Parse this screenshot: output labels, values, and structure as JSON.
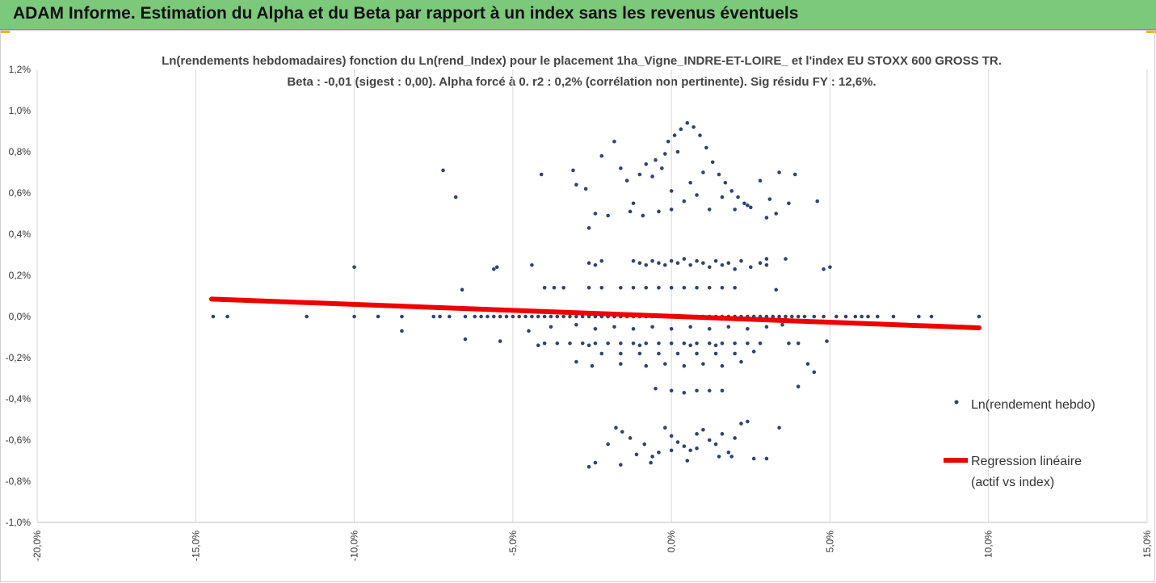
{
  "banner": {
    "title": "ADAM Informe. Estimation du Alpha et du Beta par rapport à un index sans les revenus éventuels",
    "color": "#7dc97c"
  },
  "chart_data": {
    "type": "scatter",
    "title": "Ln(rendements hebdomadaires) fonction du Ln(rend_Index) pour le placement 1ha_Vigne_INDRE-ET-LOIRE_ et l'index EU STOXX 600 GROSS TR.",
    "subtitle": "Beta : -0,01 (sigest : 0,00). Alpha forcé à 0. r2 : 0,2% (corrélation non pertinente). Sig résidu FY : 12,6%.",
    "xlabel": "",
    "ylabel": "",
    "xlim": [
      -0.2,
      0.15
    ],
    "ylim": [
      -0.01,
      0.012
    ],
    "x_ticks": [
      "-20,0%",
      "-15,0%",
      "-10,0%",
      "-5,0%",
      "0,0%",
      "5,0%",
      "10,0%",
      "15,0%"
    ],
    "y_ticks": [
      "1,2%",
      "1,0%",
      "0,8%",
      "0,6%",
      "0,4%",
      "0,2%",
      "0,0%",
      "-0,2%",
      "-0,4%",
      "-0,6%",
      "-0,8%",
      "-1,0%"
    ],
    "grid": "vertical",
    "legend_position": "right",
    "series": [
      {
        "name": "Ln(rendement hebdo)",
        "kind": "scatter",
        "color": "#2e4472",
        "points": [
          [
            -0.1445,
            0
          ],
          [
            -0.14,
            0
          ],
          [
            -0.115,
            0
          ],
          [
            -0.1,
            0
          ],
          [
            -0.0925,
            0
          ],
          [
            -0.085,
            0
          ],
          [
            -0.075,
            0
          ],
          [
            -0.073,
            0
          ],
          [
            -0.07,
            0
          ],
          [
            -0.065,
            0
          ],
          [
            -0.062,
            0
          ],
          [
            -0.06,
            0
          ],
          [
            -0.058,
            0
          ],
          [
            -0.056,
            0
          ],
          [
            -0.054,
            0
          ],
          [
            -0.052,
            0
          ],
          [
            -0.05,
            0
          ],
          [
            -0.048,
            0
          ],
          [
            -0.046,
            0
          ],
          [
            -0.044,
            0
          ],
          [
            -0.042,
            0
          ],
          [
            -0.04,
            0
          ],
          [
            -0.038,
            0
          ],
          [
            -0.036,
            0
          ],
          [
            -0.034,
            0
          ],
          [
            -0.032,
            0
          ],
          [
            -0.03,
            0
          ],
          [
            -0.028,
            0
          ],
          [
            -0.026,
            0
          ],
          [
            -0.024,
            0
          ],
          [
            -0.022,
            0
          ],
          [
            -0.02,
            0
          ],
          [
            -0.018,
            0
          ],
          [
            -0.016,
            0
          ],
          [
            -0.014,
            0
          ],
          [
            -0.012,
            0
          ],
          [
            -0.01,
            0
          ],
          [
            -0.008,
            0
          ],
          [
            -0.006,
            0
          ],
          [
            -0.004,
            0
          ],
          [
            -0.002,
            0
          ],
          [
            0,
            0
          ],
          [
            0.002,
            0
          ],
          [
            0.004,
            0
          ],
          [
            0.006,
            0
          ],
          [
            0.008,
            0
          ],
          [
            0.01,
            0
          ],
          [
            0.012,
            0
          ],
          [
            0.014,
            0
          ],
          [
            0.016,
            0
          ],
          [
            0.018,
            0
          ],
          [
            0.02,
            0
          ],
          [
            0.022,
            0
          ],
          [
            0.024,
            0
          ],
          [
            0.026,
            0
          ],
          [
            0.028,
            0
          ],
          [
            0.03,
            0
          ],
          [
            0.032,
            0
          ],
          [
            0.034,
            0
          ],
          [
            0.036,
            0
          ],
          [
            0.038,
            0
          ],
          [
            0.04,
            0
          ],
          [
            0.042,
            0
          ],
          [
            0.045,
            0
          ],
          [
            0.048,
            0
          ],
          [
            0.052,
            0
          ],
          [
            0.055,
            0
          ],
          [
            0.058,
            0
          ],
          [
            0.06,
            0
          ],
          [
            0.062,
            0
          ],
          [
            0.065,
            0
          ],
          [
            0.07,
            0
          ],
          [
            0.078,
            0
          ],
          [
            0.082,
            0
          ],
          [
            0.097,
            0
          ],
          [
            -0.1,
            0.0024
          ],
          [
            -0.055,
            0.0024
          ],
          [
            -0.056,
            0.0023
          ],
          [
            -0.044,
            0.0025
          ],
          [
            0.02,
            0.0023
          ],
          [
            0.03,
            0.0028
          ],
          [
            0.036,
            0.0028
          ],
          [
            0.048,
            0.0023
          ],
          [
            0.05,
            0.0024
          ],
          [
            -0.012,
            0.0027
          ],
          [
            -0.01,
            0.0026
          ],
          [
            -0.008,
            0.0025
          ],
          [
            -0.006,
            0.0027
          ],
          [
            -0.004,
            0.0026
          ],
          [
            -0.002,
            0.0025
          ],
          [
            0.0,
            0.0027
          ],
          [
            0.002,
            0.0026
          ],
          [
            0.004,
            0.0028
          ],
          [
            0.006,
            0.0025
          ],
          [
            0.008,
            0.0027
          ],
          [
            0.01,
            0.0026
          ],
          [
            0.012,
            0.0024
          ],
          [
            0.014,
            0.0027
          ],
          [
            0.016,
            0.0025
          ],
          [
            0.018,
            0.0026
          ],
          [
            -0.026,
            0.0026
          ],
          [
            -0.024,
            0.0025
          ],
          [
            -0.022,
            0.0027
          ],
          [
            0.022,
            0.0027
          ],
          [
            0.025,
            0.0024
          ],
          [
            0.028,
            0.0026
          ],
          [
            0.03,
            0.0025
          ],
          [
            -0.04,
            0.0014
          ],
          [
            -0.037,
            0.0014
          ],
          [
            -0.034,
            0.0014
          ],
          [
            -0.026,
            0.0014
          ],
          [
            -0.022,
            0.0014
          ],
          [
            -0.016,
            0.0014
          ],
          [
            -0.012,
            0.0014
          ],
          [
            -0.008,
            0.0014
          ],
          [
            -0.004,
            0.0014
          ],
          [
            0.0,
            0.0014
          ],
          [
            0.004,
            0.0014
          ],
          [
            0.008,
            0.0014
          ],
          [
            0.012,
            0.0014
          ],
          [
            0.016,
            0.0014
          ],
          [
            0.02,
            0.0014
          ],
          [
            0.033,
            0.0013
          ],
          [
            -0.066,
            0.0013
          ],
          [
            -0.038,
            -0.0005
          ],
          [
            -0.03,
            -0.0004
          ],
          [
            -0.024,
            -0.0006
          ],
          [
            -0.018,
            -0.0005
          ],
          [
            -0.012,
            -0.0006
          ],
          [
            -0.006,
            -0.0005
          ],
          [
            0.0,
            -0.0006
          ],
          [
            0.006,
            -0.0005
          ],
          [
            0.012,
            -0.0006
          ],
          [
            0.018,
            -0.0005
          ],
          [
            0.024,
            -0.0006
          ],
          [
            0.03,
            -0.0005
          ],
          [
            0.035,
            -0.0004
          ],
          [
            -0.045,
            -0.0007
          ],
          [
            -0.085,
            -0.0007
          ],
          [
            -0.04,
            -0.0013
          ],
          [
            -0.036,
            -0.0013
          ],
          [
            -0.032,
            -0.0013
          ],
          [
            -0.028,
            -0.0013
          ],
          [
            -0.024,
            -0.0013
          ],
          [
            -0.02,
            -0.0013
          ],
          [
            -0.016,
            -0.0013
          ],
          [
            -0.012,
            -0.0013
          ],
          [
            -0.008,
            -0.0013
          ],
          [
            -0.004,
            -0.0013
          ],
          [
            0.0,
            -0.0013
          ],
          [
            0.004,
            -0.0013
          ],
          [
            0.008,
            -0.0013
          ],
          [
            0.012,
            -0.0013
          ],
          [
            0.016,
            -0.0013
          ],
          [
            0.02,
            -0.0013
          ],
          [
            0.024,
            -0.0013
          ],
          [
            0.028,
            -0.0013
          ],
          [
            -0.065,
            -0.0011
          ],
          [
            -0.054,
            -0.0012
          ],
          [
            0.037,
            -0.0013
          ],
          [
            0.04,
            -0.0013
          ],
          [
            0.049,
            -0.0012
          ],
          [
            -0.042,
            -0.0014
          ],
          [
            -0.026,
            -0.0014
          ],
          [
            -0.01,
            -0.0014
          ],
          [
            0.006,
            -0.0014
          ],
          [
            0.014,
            -0.0014
          ],
          [
            -0.022,
            -0.0018
          ],
          [
            -0.016,
            -0.0018
          ],
          [
            -0.01,
            -0.0018
          ],
          [
            -0.004,
            -0.0018
          ],
          [
            0.002,
            -0.0018
          ],
          [
            0.008,
            -0.0018
          ],
          [
            0.014,
            -0.0018
          ],
          [
            0.02,
            -0.0018
          ],
          [
            0.026,
            -0.0017
          ],
          [
            -0.03,
            -0.0022
          ],
          [
            -0.025,
            -0.0024
          ],
          [
            -0.016,
            -0.0023
          ],
          [
            -0.008,
            -0.0024
          ],
          [
            -0.002,
            -0.0023
          ],
          [
            0.004,
            -0.0024
          ],
          [
            0.01,
            -0.0023
          ],
          [
            0.016,
            -0.0024
          ],
          [
            0.022,
            -0.0022
          ],
          [
            0.043,
            -0.0023
          ],
          [
            0.045,
            -0.0027
          ],
          [
            -0.005,
            -0.0035
          ],
          [
            0.0,
            -0.0036
          ],
          [
            0.004,
            -0.0037
          ],
          [
            0.008,
            -0.0036
          ],
          [
            0.012,
            -0.0036
          ],
          [
            0.016,
            -0.0036
          ],
          [
            0.04,
            -0.0034
          ],
          [
            -0.072,
            0.0071
          ],
          [
            -0.068,
            0.0058
          ],
          [
            -0.041,
            0.0069
          ],
          [
            -0.031,
            0.0071
          ],
          [
            -0.03,
            0.0064
          ],
          [
            -0.027,
            0.0062
          ],
          [
            -0.022,
            0.0078
          ],
          [
            -0.018,
            0.0085
          ],
          [
            -0.016,
            0.0072
          ],
          [
            -0.014,
            0.0066
          ],
          [
            -0.012,
            0.0055
          ],
          [
            -0.01,
            0.0069
          ],
          [
            -0.008,
            0.0074
          ],
          [
            -0.005,
            0.0076
          ],
          [
            -0.003,
            0.0072
          ],
          [
            -0.001,
            0.0085
          ],
          [
            0.001,
            0.0088
          ],
          [
            0.003,
            0.0091
          ],
          [
            0.005,
            0.0094
          ],
          [
            0.007,
            0.0092
          ],
          [
            0.009,
            0.0088
          ],
          [
            0.011,
            0.0082
          ],
          [
            0.013,
            0.0075
          ],
          [
            0.015,
            0.0069
          ],
          [
            0.017,
            0.0065
          ],
          [
            0.019,
            0.0061
          ],
          [
            0.021,
            0.0058
          ],
          [
            0.023,
            0.0055
          ],
          [
            0.025,
            0.0053
          ],
          [
            0.028,
            0.0066
          ],
          [
            0.031,
            0.0057
          ],
          [
            0.034,
            0.007
          ],
          [
            0.039,
            0.0069
          ],
          [
            0.046,
            0.0056
          ],
          [
            -0.026,
            0.0043
          ],
          [
            -0.024,
            0.005
          ],
          [
            -0.02,
            0.0049
          ],
          [
            -0.013,
            0.0051
          ],
          [
            -0.009,
            0.0049
          ],
          [
            -0.004,
            0.0051
          ],
          [
            0.0,
            0.0052
          ],
          [
            0.004,
            0.0056
          ],
          [
            0.008,
            0.0059
          ],
          [
            0.012,
            0.0052
          ],
          [
            0.016,
            0.0058
          ],
          [
            0.02,
            0.0052
          ],
          [
            0.024,
            0.0054
          ],
          [
            0.03,
            0.0048
          ],
          [
            0.033,
            0.005
          ],
          [
            0.037,
            0.0055
          ],
          [
            0.0,
            0.0061
          ],
          [
            -0.006,
            0.0068
          ],
          [
            0.006,
            0.0065
          ],
          [
            0.01,
            0.007
          ],
          [
            -0.002,
            0.0079
          ],
          [
            0.002,
            0.008
          ],
          [
            -0.0175,
            -0.0054
          ],
          [
            -0.0155,
            -0.0056
          ],
          [
            -0.013,
            -0.0059
          ],
          [
            -0.011,
            -0.0067
          ],
          [
            -0.0085,
            -0.0062
          ],
          [
            -0.0065,
            -0.0071
          ],
          [
            -0.004,
            -0.0066
          ],
          [
            -0.002,
            -0.0054
          ],
          [
            0.0,
            -0.0058
          ],
          [
            0.002,
            -0.0061
          ],
          [
            0.004,
            -0.0063
          ],
          [
            0.006,
            -0.0065
          ],
          [
            0.008,
            -0.0057
          ],
          [
            0.01,
            -0.0055
          ],
          [
            0.012,
            -0.006
          ],
          [
            0.014,
            -0.0062
          ],
          [
            0.016,
            -0.0057
          ],
          [
            0.018,
            -0.0066
          ],
          [
            0.02,
            -0.0059
          ],
          [
            0.022,
            -0.0052
          ],
          [
            0.024,
            -0.0051
          ],
          [
            0.026,
            -0.0069
          ],
          [
            0.034,
            -0.0054
          ],
          [
            -0.026,
            -0.0073
          ],
          [
            -0.024,
            -0.0071
          ],
          [
            -0.016,
            -0.0072
          ],
          [
            -0.006,
            -0.0068
          ],
          [
            0.005,
            -0.007
          ],
          [
            0.015,
            -0.0068
          ],
          [
            0.03,
            -0.0069
          ],
          [
            0.019,
            -0.0068
          ],
          [
            -0.02,
            -0.0062
          ],
          [
            0.0,
            -0.0065
          ],
          [
            0.008,
            -0.0064
          ]
        ]
      },
      {
        "name": "Regression linéaire (actif vs index)",
        "kind": "line",
        "color": "#ee0000",
        "x": [
          -0.145,
          0.097
        ],
        "y": [
          0.00085,
          -0.00055
        ]
      }
    ]
  },
  "legend": {
    "items": [
      {
        "label": "Ln(rendement hebdo)",
        "color": "#2e4472"
      },
      {
        "label_lines": [
          "Regression linéaire",
          "(actif vs index)"
        ],
        "color": "#ee0000"
      }
    ]
  }
}
